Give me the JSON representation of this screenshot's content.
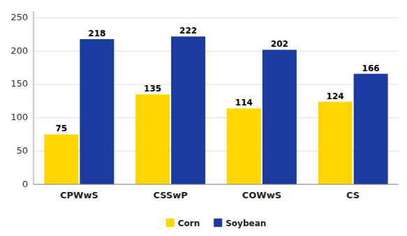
{
  "chart_data": {
    "type": "bar",
    "categories": [
      "CPWwS",
      "CSSwP",
      "COWwS",
      "CS"
    ],
    "series": [
      {
        "name": "Corn",
        "color": "#FFD700",
        "values": [
          75,
          135,
          114,
          124
        ]
      },
      {
        "name": "Soybean",
        "color": "#1C3BA0",
        "values": [
          218,
          222,
          202,
          166
        ]
      }
    ],
    "ylim": [
      0,
      260
    ],
    "yticks": [
      0,
      50,
      100,
      150,
      200,
      250
    ],
    "grid": true,
    "data_labels": true,
    "legend": "bottom"
  }
}
